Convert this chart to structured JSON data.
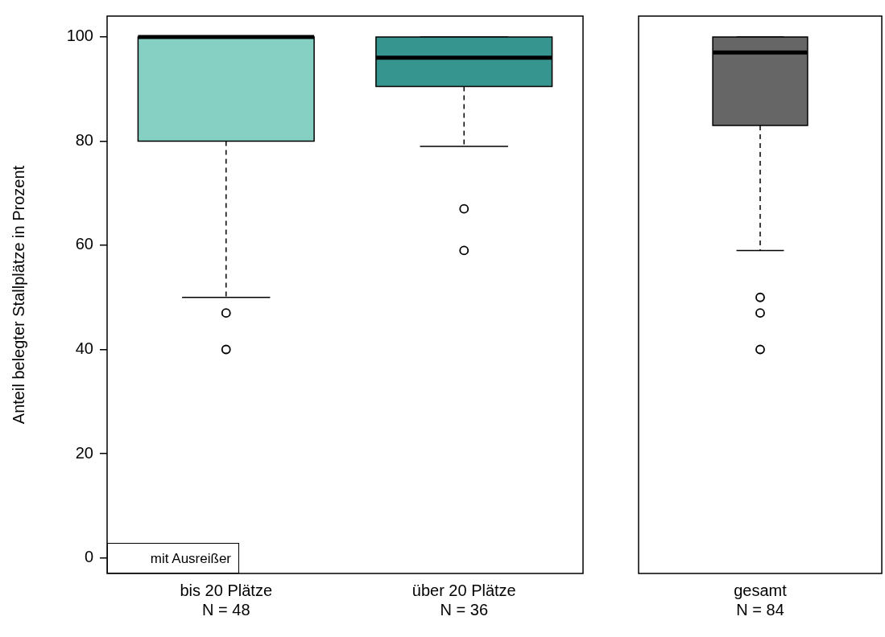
{
  "chart_data": [
    {
      "type": "box",
      "ylabel": "Anteil belegter Stallplätze in Prozent",
      "categories": [
        "bis 20 Plätze\nN = 48",
        "über 20 Plätze\nN = 36"
      ],
      "colors": [
        "#85d0c2",
        "#36958f"
      ],
      "boxes": [
        {
          "low": 50,
          "q1": 80,
          "median": 100,
          "q3": 100,
          "high": 100,
          "outliers": [
            47,
            40
          ]
        },
        {
          "low": 79,
          "q1": 90.5,
          "median": 96,
          "q3": 100,
          "high": 100,
          "outliers": [
            67,
            59
          ]
        }
      ],
      "ylim": [
        -3,
        104
      ],
      "yticks": [
        0,
        20,
        40,
        60,
        80,
        100
      ],
      "annotations": [
        "mit Ausreißer"
      ]
    },
    {
      "type": "box",
      "categories": [
        "gesamt\nN = 84"
      ],
      "colors": [
        "#666666"
      ],
      "boxes": [
        {
          "low": 59,
          "q1": 83,
          "median": 97,
          "q3": 100,
          "high": 100,
          "outliers": [
            50,
            47,
            40
          ]
        }
      ],
      "ylim": [
        -3,
        104
      ],
      "tick_labels": "x"
    }
  ]
}
